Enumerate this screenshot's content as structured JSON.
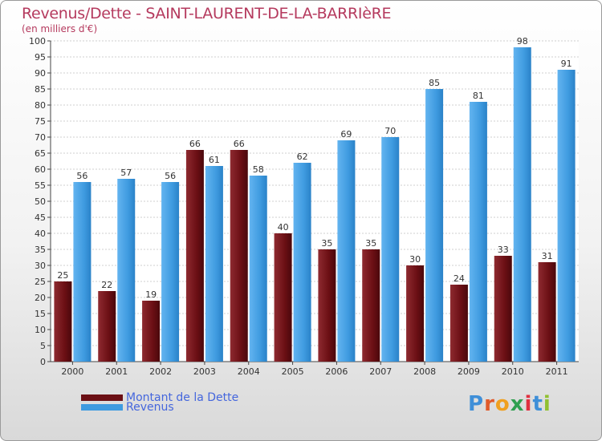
{
  "chart_data": {
    "type": "bar",
    "title": "Revenus/Dette - SAINT-LAURENT-DE-LA-BARRIèRE",
    "subtitle": "(en milliers d'€)",
    "xlabel": "",
    "ylabel": "",
    "categories": [
      "2000",
      "2001",
      "2002",
      "2003",
      "2004",
      "2005",
      "2006",
      "2007",
      "2008",
      "2009",
      "2010",
      "2011"
    ],
    "series": [
      {
        "name": "Montant de la Dette",
        "color": "#6b0f14",
        "values": [
          25,
          22,
          19,
          66,
          66,
          40,
          35,
          35,
          30,
          24,
          33,
          31
        ]
      },
      {
        "name": "Revenus",
        "color": "#3f9be0",
        "values": [
          56,
          57,
          56,
          61,
          58,
          62,
          69,
          70,
          85,
          81,
          98,
          91
        ]
      }
    ],
    "ylim": [
      0,
      100
    ],
    "ytick_step": 5,
    "grid": true,
    "legend_position": "bottom-left"
  },
  "branding": {
    "logo_letters": [
      "P",
      "r",
      "o",
      "x",
      "i",
      "t",
      "i"
    ],
    "logo_colors": [
      "#3f8fd8",
      "#e05a2a",
      "#f0a020",
      "#30a050",
      "#e03040",
      "#3f8fd8",
      "#90c030"
    ]
  }
}
